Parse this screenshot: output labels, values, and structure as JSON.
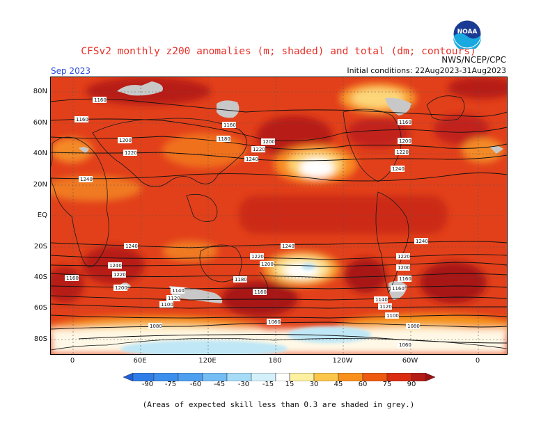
{
  "header": {
    "title": "CFSv2 monthly z200 anomalies (m; shaded) and total (dm; contours)",
    "agency": "NWS/NCEP/CPC",
    "valid_month": "Sep 2023",
    "initial_conditions": "Initial conditions: 22Aug2023-31Aug2023",
    "logo_text": "NOAA"
  },
  "axes": {
    "lat_labels": [
      "80N",
      "60N",
      "40N",
      "20N",
      "EQ",
      "20S",
      "40S",
      "60S",
      "80S"
    ],
    "lon_labels": [
      "0",
      "60E",
      "120E",
      "180",
      "120W",
      "60W",
      "0"
    ]
  },
  "contour_labels": [
    "1160",
    "1160",
    "1200",
    "1220",
    "1240",
    "1160",
    "1180",
    "1200",
    "1220",
    "1240",
    "1240",
    "1160",
    "1200",
    "1220",
    "1240",
    "1240",
    "1220",
    "1200",
    "1160",
    "1240",
    "1220",
    "1200",
    "1180",
    "1140",
    "1120",
    "1100",
    "1080",
    "1160",
    "1180",
    "1220",
    "1200",
    "1140",
    "1120",
    "1100",
    "1080",
    "1060",
    "1060",
    "1240",
    "1220",
    "1200",
    "1160",
    "1160",
    "1140"
  ],
  "colorbar": {
    "labels": [
      "-90",
      "-75",
      "-60",
      "-45",
      "-30",
      "-15",
      "15",
      "30",
      "45",
      "60",
      "75",
      "90"
    ],
    "colors": [
      "#1f5fd9",
      "#2f7ee8",
      "#4e9ff0",
      "#74bdf5",
      "#a6dcf8",
      "#d4f1fb",
      "#ffffff",
      "#fdf0a0",
      "#fcc64a",
      "#f9901e",
      "#ee5a10",
      "#da2c10",
      "#b51c16",
      "#9c1010"
    ]
  },
  "footer_note": "(Areas of expected skill less than 0.3 are shaded in grey.)"
}
